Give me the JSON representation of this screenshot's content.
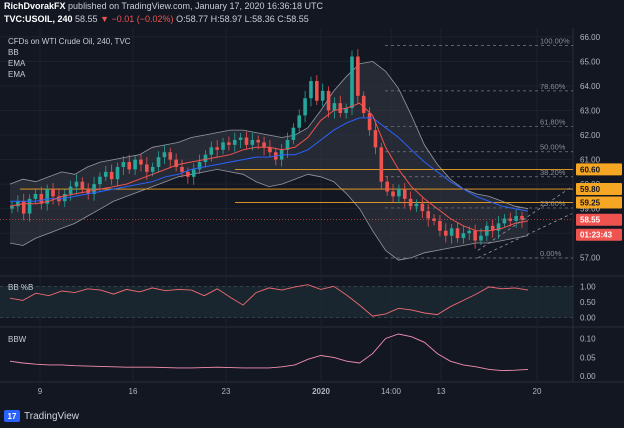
{
  "header": {
    "author": "RichDvorakFX",
    "published": "published on TradingView.com, January 17, 2020 16:36:18 UTC",
    "symbol": "TVC:USOIL, 240",
    "last": "58.55",
    "change": "−0.01 (−0.02%)",
    "open": "O:58.77",
    "high": "H:58.97",
    "low": "L:58.36",
    "close": "C:58.55"
  },
  "footer": {
    "brand": "TradingView"
  },
  "colors": {
    "background": "#131722",
    "up": "#26a69a",
    "down": "#ef5350",
    "bb_fill": "#363a45",
    "ema_fast": "#ef5350",
    "ema_slow": "#2962ff",
    "pctb": "#f06a70",
    "bbw": "#f48fb1",
    "fib": "#787b86",
    "level": "#f5a623"
  },
  "chart_data": [
    {
      "type": "candlestick",
      "title": "CFDs on WTI Crude Oil, 240, TVC",
      "legend": [
        "BB",
        "EMA",
        "EMA"
      ],
      "x_tick_labels": [
        "9",
        "16",
        "23",
        "2020",
        "14:00",
        "13",
        "20"
      ],
      "ylim": [
        56.5,
        66.2
      ],
      "y_ticks": [
        66.0,
        65.0,
        64.0,
        63.0,
        62.0,
        61.0,
        60.0,
        59.0,
        58.0,
        57.0
      ],
      "y_tick_labels": [
        "66.00",
        "65.00",
        "64.00",
        "63.00",
        "62.00",
        "61.00",
        "60.00",
        "59.00",
        "58.00",
        "57.00"
      ],
      "price_series": [
        59.1,
        59.3,
        58.8,
        59.4,
        59.6,
        59.2,
        59.8,
        59.5,
        59.3,
        59.6,
        59.9,
        60.1,
        59.8,
        59.6,
        60.0,
        60.3,
        60.5,
        60.2,
        60.7,
        60.9,
        60.6,
        61.0,
        60.8,
        60.5,
        60.7,
        61.1,
        61.3,
        61.0,
        60.7,
        60.5,
        60.3,
        60.6,
        60.9,
        61.2,
        61.5,
        61.4,
        61.7,
        61.6,
        61.8,
        61.9,
        61.6,
        61.8,
        61.7,
        61.5,
        61.3,
        61.0,
        61.4,
        61.8,
        62.3,
        62.8,
        63.5,
        64.2,
        63.4,
        63.8,
        63.0,
        63.3,
        62.9,
        63.1,
        65.2,
        63.6,
        62.9,
        62.2,
        61.5,
        60.1,
        59.7,
        59.5,
        59.8,
        59.4,
        59.1,
        59.2,
        58.9,
        58.6,
        58.5,
        58.1,
        57.9,
        58.2,
        57.8,
        58.0,
        58.1,
        57.7,
        57.9,
        58.3,
        58.1,
        58.4,
        58.6,
        58.5,
        58.7,
        58.55
      ],
      "bb_upper": [
        60.0,
        60.2,
        60.1,
        60.3,
        60.5,
        60.4,
        60.7,
        60.9,
        61.0,
        61.1,
        61.2,
        61.5,
        61.6,
        61.7,
        61.9,
        62.0,
        62.1,
        62.2,
        62.2,
        62.1,
        62.0,
        61.9,
        62.0,
        62.3,
        63.0,
        63.8,
        64.4,
        64.9,
        65.0,
        64.6,
        63.9,
        62.8,
        61.6,
        60.8,
        60.2,
        59.8,
        59.6,
        59.5,
        59.3,
        59.1,
        59.0
      ],
      "bb_lower": [
        57.6,
        57.5,
        57.8,
        58.0,
        58.2,
        58.4,
        58.7,
        59.0,
        59.3,
        59.5,
        59.7,
        59.9,
        60.1,
        60.3,
        60.4,
        60.5,
        60.6,
        60.5,
        60.4,
        60.1,
        59.9,
        60.0,
        60.2,
        60.4,
        60.3,
        60.1,
        59.6,
        59.0,
        58.1,
        57.3,
        56.9,
        57.0,
        57.2,
        57.3,
        57.4,
        57.5,
        57.6,
        57.6,
        57.7,
        57.8,
        57.9
      ],
      "ema_fast": [
        59.1,
        59.2,
        59.2,
        59.3,
        59.5,
        59.6,
        59.7,
        59.8,
        59.9,
        60.0,
        60.2,
        60.4,
        60.6,
        60.8,
        60.9,
        61.0,
        61.1,
        61.2,
        61.4,
        61.5,
        61.5,
        61.4,
        61.5,
        61.9,
        62.6,
        63.0,
        63.1,
        63.3,
        62.8,
        61.5,
        60.6,
        59.9,
        59.4,
        59.0,
        58.6,
        58.3,
        58.1,
        58.1,
        58.2,
        58.4,
        58.5
      ],
      "ema_slow": [
        59.3,
        59.3,
        59.3,
        59.4,
        59.4,
        59.5,
        59.6,
        59.7,
        59.8,
        59.9,
        60.0,
        60.1,
        60.3,
        60.4,
        60.6,
        60.7,
        60.8,
        60.9,
        61.0,
        61.1,
        61.1,
        61.2,
        61.2,
        61.4,
        61.8,
        62.2,
        62.5,
        62.7,
        62.7,
        62.3,
        61.9,
        61.4,
        60.9,
        60.5,
        60.1,
        59.8,
        59.5,
        59.3,
        59.1,
        59.0,
        58.9
      ],
      "fib_levels": [
        {
          "label": "100.00%",
          "value": 65.65
        },
        {
          "label": "78.60%",
          "value": 63.8
        },
        {
          "label": "61.80%",
          "value": 62.34
        },
        {
          "label": "50.00%",
          "value": 61.32
        },
        {
          "label": "38.20%",
          "value": 60.3
        },
        {
          "label": "23.60%",
          "value": 59.03
        },
        {
          "label": "0.00%",
          "value": 56.99
        }
      ],
      "price_labels": [
        {
          "label": "60.60",
          "value": 60.6
        },
        {
          "label": "59.80",
          "value": 59.8
        },
        {
          "label": "59.25",
          "value": 59.25
        },
        {
          "label": "58.55",
          "value": 58.55
        },
        {
          "label": "01:23:43",
          "value": 58.1
        }
      ]
    },
    {
      "type": "line",
      "title": "BB %B",
      "ylim": [
        -0.2,
        1.2
      ],
      "y_tick_labels": [
        "1.00",
        "0.50",
        "0.00"
      ],
      "y_ticks": [
        1.0,
        0.5,
        0.0
      ],
      "values": [
        0.62,
        0.55,
        0.78,
        0.7,
        0.85,
        0.8,
        0.92,
        0.88,
        0.75,
        0.9,
        0.82,
        0.95,
        0.86,
        0.9,
        0.88,
        0.7,
        0.92,
        0.65,
        0.4,
        0.8,
        0.95,
        0.88,
        0.98,
        1.05,
        0.9,
        1.0,
        0.72,
        0.4,
        0.05,
        0.12,
        0.3,
        0.25,
        0.15,
        0.1,
        0.35,
        0.55,
        0.75,
        0.98,
        0.92,
        0.95,
        0.88
      ]
    },
    {
      "type": "line",
      "title": "BBW",
      "ylim": [
        -0.01,
        0.12
      ],
      "y_tick_labels": [
        "0.10",
        "0.05",
        "0.00"
      ],
      "y_ticks": [
        0.1,
        0.05,
        0.0
      ],
      "values": [
        0.04,
        0.035,
        0.032,
        0.03,
        0.03,
        0.028,
        0.027,
        0.026,
        0.025,
        0.024,
        0.024,
        0.024,
        0.023,
        0.022,
        0.022,
        0.023,
        0.024,
        0.023,
        0.022,
        0.022,
        0.022,
        0.025,
        0.03,
        0.045,
        0.055,
        0.05,
        0.04,
        0.035,
        0.06,
        0.1,
        0.112,
        0.105,
        0.09,
        0.06,
        0.04,
        0.03,
        0.025,
        0.018,
        0.015,
        0.016,
        0.018
      ]
    }
  ]
}
